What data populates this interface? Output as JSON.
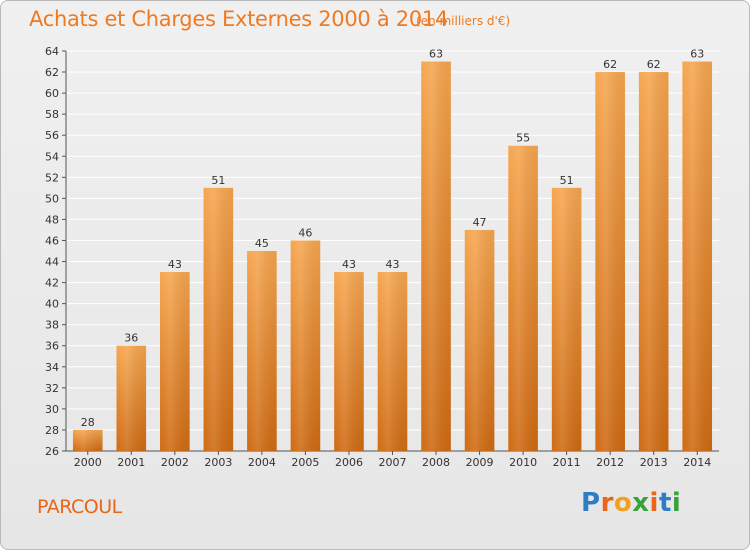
{
  "header": {
    "title": "Achats et Charges Externes 2000 à 2014",
    "subtitle": "(en milliers d'€)"
  },
  "footer": {
    "place": "PARCOUL",
    "brand": "Proxiti"
  },
  "brand_letters": [
    {
      "ch": "P",
      "color": "#2e7cc4"
    },
    {
      "ch": "r",
      "color": "#e8651a"
    },
    {
      "ch": "o",
      "color": "#f2a020"
    },
    {
      "ch": "x",
      "color": "#3aa23a"
    },
    {
      "ch": "i",
      "color": "#e8651a"
    },
    {
      "ch": "t",
      "color": "#2e7cc4"
    },
    {
      "ch": "i",
      "color": "#3aa23a"
    }
  ],
  "chart_data": {
    "type": "bar",
    "title": "Achats et Charges Externes 2000 à 2014",
    "subtitle": "(en milliers d'€)",
    "categories": [
      "2000",
      "2001",
      "2002",
      "2003",
      "2004",
      "2005",
      "2006",
      "2007",
      "2008",
      "2009",
      "2010",
      "2011",
      "2012",
      "2013",
      "2014"
    ],
    "values": [
      28,
      36,
      43,
      51,
      45,
      46,
      43,
      43,
      63,
      47,
      55,
      51,
      62,
      62,
      63
    ],
    "ylim": [
      26,
      64
    ],
    "yticks": [
      26,
      28,
      30,
      32,
      34,
      36,
      38,
      40,
      42,
      44,
      46,
      48,
      50,
      52,
      54,
      56,
      58,
      60,
      62,
      64
    ],
    "grid": true,
    "legend": "none",
    "bar_color_top": "#f6a64f",
    "bar_color_bottom": "#cf6a12",
    "grid_color": "#ffffff",
    "axis_color": "#555555",
    "text_color": "#333333"
  }
}
